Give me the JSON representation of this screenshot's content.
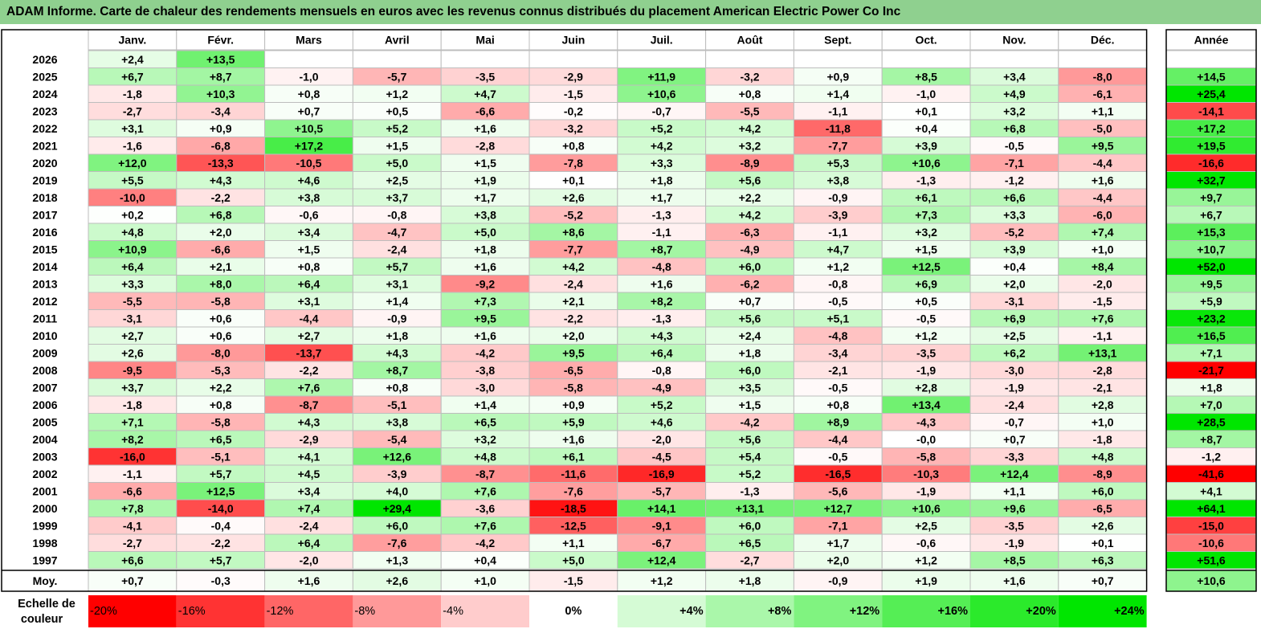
{
  "title": "ADAM Informe. Carte de chaleur des rendements mensuels en euros avec les revenus connus distribués du placement American Electric Power Co Inc",
  "colors": {
    "title_bg": "#8fd08f",
    "neg_max": "#ff0000",
    "pos_max": "#00e600",
    "neutral": "#ffffff"
  },
  "chart_data": {
    "type": "heatmap",
    "title": "ADAM Informe. Carte de chaleur des rendements mensuels en euros avec les revenus connus distribués du placement American Electric Power Co Inc",
    "months": [
      "Janv.",
      "Févr.",
      "Mars",
      "Avril",
      "Mai",
      "Juin",
      "Juil.",
      "Août",
      "Sept.",
      "Oct.",
      "Nov.",
      "Déc."
    ],
    "year_header": "Année",
    "avg_label": "Moy.",
    "rows": [
      {
        "year": "2026",
        "values": [
          2.4,
          13.5,
          null,
          null,
          null,
          null,
          null,
          null,
          null,
          null,
          null,
          null
        ],
        "annual": null
      },
      {
        "year": "2025",
        "values": [
          6.7,
          8.7,
          -1.0,
          -5.7,
          -3.5,
          -2.9,
          11.9,
          -3.2,
          0.9,
          8.5,
          3.4,
          -8.0
        ],
        "annual": 14.5
      },
      {
        "year": "2024",
        "values": [
          -1.8,
          10.3,
          0.8,
          1.2,
          4.7,
          -1.5,
          10.6,
          0.8,
          1.4,
          -1.0,
          4.9,
          -6.1
        ],
        "annual": 25.4
      },
      {
        "year": "2023",
        "values": [
          -2.7,
          -3.4,
          0.7,
          0.5,
          -6.6,
          -0.2,
          -0.7,
          -5.5,
          -1.1,
          0.1,
          3.2,
          1.1
        ],
        "annual": -14.1
      },
      {
        "year": "2022",
        "values": [
          3.1,
          0.9,
          10.5,
          5.2,
          1.6,
          -3.2,
          5.2,
          4.2,
          -11.8,
          0.4,
          6.8,
          -5.0
        ],
        "annual": 17.2
      },
      {
        "year": "2021",
        "values": [
          -1.6,
          -6.8,
          17.2,
          1.5,
          -2.8,
          0.8,
          4.2,
          3.2,
          -7.7,
          3.9,
          -0.5,
          9.5
        ],
        "annual": 19.5
      },
      {
        "year": "2020",
        "values": [
          12.0,
          -13.3,
          -10.5,
          5.0,
          1.5,
          -7.8,
          3.3,
          -8.9,
          5.3,
          10.6,
          -7.1,
          -4.4
        ],
        "annual": -16.6
      },
      {
        "year": "2019",
        "values": [
          5.5,
          4.3,
          4.6,
          2.5,
          1.9,
          0.1,
          1.8,
          5.6,
          3.8,
          -1.3,
          -1.2,
          1.6
        ],
        "annual": 32.7
      },
      {
        "year": "2018",
        "values": [
          -10.0,
          -2.2,
          3.8,
          3.7,
          1.7,
          2.6,
          1.7,
          2.2,
          -0.9,
          6.1,
          6.6,
          -4.4
        ],
        "annual": 9.7
      },
      {
        "year": "2017",
        "values": [
          0.2,
          6.8,
          -0.6,
          -0.8,
          3.8,
          -5.2,
          -1.3,
          4.2,
          -3.9,
          7.3,
          3.3,
          -6.0
        ],
        "annual": 6.7
      },
      {
        "year": "2016",
        "values": [
          4.8,
          2.0,
          3.4,
          -4.7,
          5.0,
          8.6,
          -1.1,
          -6.3,
          -1.1,
          3.2,
          -5.2,
          7.4
        ],
        "annual": 15.3
      },
      {
        "year": "2015",
        "values": [
          10.9,
          -6.6,
          1.5,
          -2.4,
          1.8,
          -7.7,
          8.7,
          -4.9,
          4.7,
          1.5,
          3.9,
          1.0
        ],
        "annual": 10.7
      },
      {
        "year": "2014",
        "values": [
          6.4,
          2.1,
          0.8,
          5.7,
          1.6,
          4.2,
          -4.8,
          6.0,
          1.2,
          12.5,
          0.4,
          8.4
        ],
        "annual": 52.0
      },
      {
        "year": "2013",
        "values": [
          3.3,
          8.0,
          6.4,
          3.1,
          -9.2,
          -2.4,
          1.6,
          -6.2,
          -0.8,
          6.9,
          2.0,
          -2.0
        ],
        "annual": 9.5
      },
      {
        "year": "2012",
        "values": [
          -5.5,
          -5.8,
          3.1,
          1.4,
          7.3,
          2.1,
          8.2,
          0.7,
          -0.5,
          0.5,
          -3.1,
          -1.5
        ],
        "annual": 5.9
      },
      {
        "year": "2011",
        "values": [
          -3.1,
          0.6,
          -4.4,
          -0.9,
          9.5,
          -2.2,
          -1.3,
          5.6,
          5.1,
          -0.5,
          6.9,
          7.6
        ],
        "annual": 23.2
      },
      {
        "year": "2010",
        "values": [
          2.7,
          0.6,
          2.7,
          1.8,
          1.6,
          2.0,
          4.3,
          2.4,
          -4.8,
          1.2,
          2.5,
          -1.1
        ],
        "annual": 16.5
      },
      {
        "year": "2009",
        "values": [
          2.6,
          -8.0,
          -13.7,
          4.3,
          -4.2,
          9.5,
          6.4,
          1.8,
          -3.4,
          -3.5,
          6.2,
          13.1
        ],
        "annual": 7.1
      },
      {
        "year": "2008",
        "values": [
          -9.5,
          -5.3,
          -2.2,
          8.7,
          -3.8,
          -6.5,
          -0.8,
          6.0,
          -2.1,
          -1.9,
          -3.0,
          -2.8
        ],
        "annual": -21.7
      },
      {
        "year": "2007",
        "values": [
          3.7,
          2.2,
          7.6,
          0.8,
          -3.0,
          -5.8,
          -4.9,
          3.5,
          -0.5,
          2.8,
          -1.9,
          -2.1
        ],
        "annual": 1.8
      },
      {
        "year": "2006",
        "values": [
          -1.8,
          0.8,
          -8.7,
          -5.1,
          1.4,
          0.9,
          5.2,
          1.5,
          0.8,
          13.4,
          -2.4,
          2.8
        ],
        "annual": 7.0
      },
      {
        "year": "2005",
        "values": [
          7.1,
          -5.8,
          4.3,
          3.8,
          6.5,
          5.9,
          4.6,
          -4.2,
          8.9,
          -4.3,
          -0.7,
          1.0
        ],
        "annual": 28.5
      },
      {
        "year": "2004",
        "values": [
          8.2,
          6.5,
          -2.9,
          -5.4,
          3.2,
          1.6,
          -2.0,
          5.6,
          -4.4,
          -0.0,
          0.7,
          -1.8
        ],
        "annual": 8.7
      },
      {
        "year": "2003",
        "values": [
          -16.0,
          -5.1,
          4.1,
          12.6,
          4.8,
          6.1,
          -4.5,
          5.4,
          -0.5,
          -5.8,
          -3.3,
          4.8
        ],
        "annual": -1.2
      },
      {
        "year": "2002",
        "values": [
          -1.1,
          5.7,
          4.5,
          -3.9,
          -8.7,
          -11.6,
          -16.9,
          5.2,
          -16.5,
          -10.3,
          12.4,
          -8.9
        ],
        "annual": -41.6
      },
      {
        "year": "2001",
        "values": [
          -6.6,
          12.5,
          3.4,
          4.0,
          7.6,
          -7.6,
          -5.7,
          -1.3,
          -5.6,
          -1.9,
          1.1,
          6.0
        ],
        "annual": 4.1
      },
      {
        "year": "2000",
        "values": [
          7.8,
          -14.0,
          7.4,
          29.4,
          -3.6,
          -18.5,
          14.1,
          13.1,
          12.7,
          10.6,
          9.6,
          -6.5
        ],
        "annual": 64.1
      },
      {
        "year": "1999",
        "values": [
          -4.1,
          -0.4,
          -2.4,
          6.0,
          7.6,
          -12.5,
          -9.1,
          6.0,
          -7.1,
          2.5,
          -3.5,
          2.6
        ],
        "annual": -15.0
      },
      {
        "year": "1998",
        "values": [
          -2.7,
          -2.2,
          6.4,
          -7.6,
          -4.2,
          1.1,
          -6.7,
          6.5,
          1.7,
          -0.6,
          -1.9,
          0.1
        ],
        "annual": -10.6
      },
      {
        "year": "1997",
        "values": [
          6.6,
          5.7,
          -2.0,
          1.3,
          0.4,
          5.0,
          12.4,
          -2.7,
          2.0,
          1.2,
          8.5,
          6.3
        ],
        "annual": 51.6
      }
    ],
    "averages": [
      0.7,
      -0.3,
      1.6,
      2.6,
      1.0,
      -1.5,
      1.2,
      1.8,
      -0.9,
      1.9,
      1.6,
      0.7
    ],
    "average_annual": 10.6,
    "scale": {
      "label": "Echelle de couleur",
      "stops": [
        -20,
        -16,
        -12,
        -8,
        -4,
        0,
        4,
        8,
        12,
        16,
        20,
        24
      ],
      "labels": [
        "-20%",
        "-16%",
        "-12%",
        "-8%",
        "-4%",
        "0%",
        "+4%",
        "+8%",
        "+12%",
        "+16%",
        "+20%",
        "+24%"
      ]
    }
  }
}
